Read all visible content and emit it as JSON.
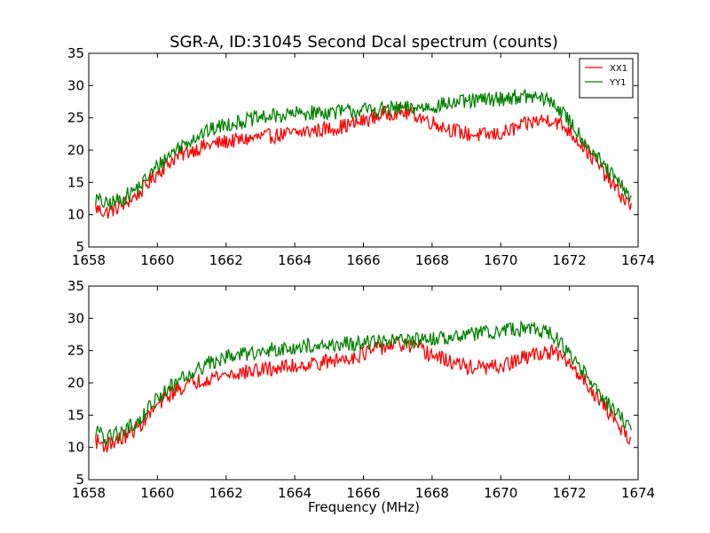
{
  "chart_data": [
    {
      "type": "line",
      "title": "SGR-A, ID:31045 Second Dcal spectrum (counts)",
      "xlabel": "",
      "ylabel": "",
      "xlim": [
        1658,
        1674
      ],
      "ylim": [
        5,
        35
      ],
      "xticks": [
        1658,
        1660,
        1662,
        1664,
        1666,
        1668,
        1670,
        1672,
        1674
      ],
      "yticks": [
        5,
        10,
        15,
        20,
        25,
        30,
        35
      ],
      "grid": false,
      "legend": "top-right",
      "series": [
        {
          "name": "XX1",
          "color": "#ff0000",
          "x": [
            1658.2,
            1658.5,
            1659.0,
            1659.5,
            1660.0,
            1660.5,
            1661.0,
            1661.5,
            1662.0,
            1662.5,
            1663.0,
            1663.5,
            1664.0,
            1664.5,
            1665.0,
            1665.5,
            1666.0,
            1666.5,
            1667.0,
            1667.5,
            1668.0,
            1668.5,
            1669.0,
            1669.5,
            1670.0,
            1670.5,
            1671.0,
            1671.5,
            1672.0,
            1672.5,
            1673.0,
            1673.5,
            1673.8
          ],
          "values": [
            11.0,
            10.3,
            11.5,
            13.5,
            16.5,
            18.8,
            20.0,
            20.8,
            21.3,
            21.6,
            22.0,
            22.3,
            22.6,
            23.0,
            23.3,
            23.8,
            24.5,
            25.5,
            26.0,
            25.5,
            24.3,
            23.3,
            22.5,
            22.3,
            22.5,
            23.5,
            24.5,
            24.8,
            23.0,
            20.0,
            16.5,
            13.0,
            11.2
          ]
        },
        {
          "name": "YY1",
          "color": "#008000",
          "x": [
            1658.2,
            1658.5,
            1659.0,
            1659.5,
            1660.0,
            1660.5,
            1661.0,
            1661.5,
            1662.0,
            1662.5,
            1663.0,
            1663.5,
            1664.0,
            1664.5,
            1665.0,
            1665.5,
            1666.0,
            1666.5,
            1667.0,
            1667.5,
            1668.0,
            1668.5,
            1669.0,
            1669.5,
            1670.0,
            1670.5,
            1671.0,
            1671.5,
            1672.0,
            1672.5,
            1673.0,
            1673.5,
            1673.8
          ],
          "values": [
            12.5,
            11.5,
            12.5,
            14.5,
            17.5,
            20.0,
            21.8,
            23.0,
            24.0,
            24.5,
            25.0,
            25.3,
            25.6,
            25.8,
            25.9,
            26.0,
            26.2,
            26.3,
            26.4,
            26.5,
            26.8,
            27.2,
            27.5,
            27.8,
            28.0,
            28.3,
            28.2,
            27.5,
            24.5,
            21.0,
            17.5,
            14.5,
            12.5
          ]
        }
      ]
    },
    {
      "type": "line",
      "title": "",
      "xlabel": "Frequency (MHz)",
      "ylabel": "",
      "xlim": [
        1658,
        1674
      ],
      "ylim": [
        5,
        35
      ],
      "xticks": [
        1658,
        1660,
        1662,
        1664,
        1666,
        1668,
        1670,
        1672,
        1674
      ],
      "yticks": [
        5,
        10,
        15,
        20,
        25,
        30,
        35
      ],
      "grid": false,
      "series": [
        {
          "color": "#ff0000",
          "x": [
            1658.2,
            1658.5,
            1659.0,
            1659.5,
            1660.0,
            1660.5,
            1661.0,
            1661.5,
            1662.0,
            1662.5,
            1663.0,
            1663.5,
            1664.0,
            1664.5,
            1665.0,
            1665.5,
            1666.0,
            1666.5,
            1667.0,
            1667.5,
            1668.0,
            1668.5,
            1669.0,
            1669.5,
            1670.0,
            1670.5,
            1671.0,
            1671.5,
            1672.0,
            1672.5,
            1673.0,
            1673.5,
            1673.8
          ],
          "values": [
            11.0,
            10.3,
            11.5,
            13.5,
            16.5,
            18.8,
            20.0,
            20.8,
            21.3,
            21.6,
            22.0,
            22.3,
            22.6,
            23.0,
            23.3,
            23.8,
            24.5,
            25.5,
            26.0,
            25.5,
            24.3,
            23.3,
            22.5,
            22.3,
            22.5,
            23.5,
            24.5,
            24.8,
            23.0,
            20.0,
            16.5,
            13.0,
            11.2
          ]
        },
        {
          "color": "#008000",
          "x": [
            1658.2,
            1658.5,
            1659.0,
            1659.5,
            1660.0,
            1660.5,
            1661.0,
            1661.5,
            1662.0,
            1662.5,
            1663.0,
            1663.5,
            1664.0,
            1664.5,
            1665.0,
            1665.5,
            1666.0,
            1666.5,
            1667.0,
            1667.5,
            1668.0,
            1668.5,
            1669.0,
            1669.5,
            1670.0,
            1670.5,
            1671.0,
            1671.5,
            1672.0,
            1672.5,
            1673.0,
            1673.5,
            1673.8
          ],
          "values": [
            12.5,
            11.5,
            12.5,
            14.5,
            17.5,
            20.0,
            21.8,
            23.0,
            24.0,
            24.5,
            25.0,
            25.3,
            25.6,
            25.8,
            25.9,
            26.0,
            26.2,
            26.3,
            26.4,
            26.5,
            26.8,
            27.2,
            27.5,
            27.8,
            28.0,
            28.3,
            28.2,
            27.5,
            24.5,
            21.0,
            17.5,
            14.5,
            12.5
          ]
        }
      ]
    }
  ]
}
